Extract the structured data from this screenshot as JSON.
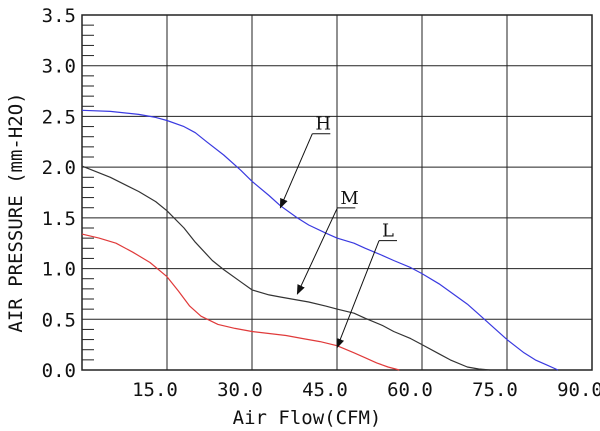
{
  "chart_data": {
    "type": "line",
    "title": "",
    "xlabel": "Air Flow(CFM)",
    "ylabel": "AIR PRESSURE (mm-H2O)",
    "xlim": [
      0,
      90
    ],
    "ylim": [
      0,
      3.5
    ],
    "x_ticks": [
      "15.0",
      "30.0",
      "45.0",
      "60.0",
      "75.0",
      "90.0"
    ],
    "y_ticks": [
      "0.0",
      "0.5",
      "1.0",
      "1.5",
      "2.0",
      "2.5",
      "3.0",
      "3.5"
    ],
    "grid": true,
    "series": [
      {
        "name": "H",
        "color": "#3a3ae0",
        "x": [
          0,
          5,
          10,
          13,
          15,
          18,
          20,
          22,
          25,
          28,
          30,
          33,
          35,
          38,
          40,
          43,
          45,
          48,
          50,
          53,
          55,
          58,
          60,
          63,
          65,
          68,
          70,
          73,
          75,
          78,
          80,
          82,
          84
        ],
        "y": [
          2.56,
          2.55,
          2.52,
          2.49,
          2.46,
          2.4,
          2.34,
          2.25,
          2.12,
          1.97,
          1.86,
          1.72,
          1.62,
          1.5,
          1.43,
          1.35,
          1.3,
          1.25,
          1.2,
          1.13,
          1.08,
          1.01,
          0.95,
          0.85,
          0.77,
          0.65,
          0.55,
          0.4,
          0.3,
          0.17,
          0.1,
          0.05,
          0.0
        ]
      },
      {
        "name": "M",
        "color": "#333333",
        "x": [
          0,
          5,
          10,
          13,
          15,
          18,
          20,
          23,
          25,
          28,
          30,
          33,
          35,
          38,
          40,
          43,
          45,
          48,
          50,
          53,
          55,
          58,
          60,
          63,
          65,
          68,
          70,
          72
        ],
        "y": [
          2.01,
          1.9,
          1.76,
          1.66,
          1.57,
          1.4,
          1.26,
          1.08,
          0.99,
          0.87,
          0.79,
          0.74,
          0.72,
          0.69,
          0.67,
          0.63,
          0.6,
          0.56,
          0.51,
          0.44,
          0.38,
          0.31,
          0.25,
          0.16,
          0.1,
          0.03,
          0.01,
          0.0
        ]
      },
      {
        "name": "L",
        "color": "#e03a3a",
        "x": [
          0,
          3,
          6,
          9,
          12,
          15,
          17,
          19,
          21,
          24,
          27,
          30,
          33,
          36,
          39,
          42,
          45,
          48,
          50,
          52,
          54,
          56
        ],
        "y": [
          1.34,
          1.3,
          1.25,
          1.16,
          1.06,
          0.92,
          0.78,
          0.63,
          0.53,
          0.45,
          0.41,
          0.38,
          0.36,
          0.34,
          0.31,
          0.28,
          0.24,
          0.17,
          0.12,
          0.07,
          0.03,
          0.0
        ]
      }
    ],
    "callouts": [
      {
        "label": "H",
        "target_x": 35.0,
        "target_y": 1.6
      },
      {
        "label": "M",
        "target_x": 38.0,
        "target_y": 0.75
      },
      {
        "label": "L",
        "target_x": 45.0,
        "target_y": 0.22
      }
    ]
  }
}
